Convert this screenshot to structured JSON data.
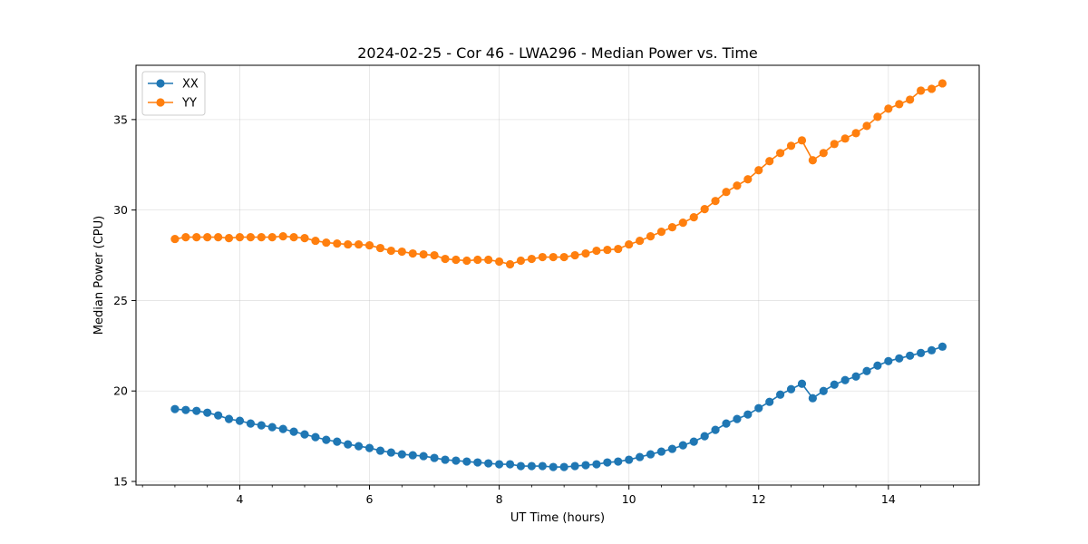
{
  "chart_data": {
    "type": "line",
    "title": "2024-02-25 - Cor 46 - LWA296 - Median Power vs. Time",
    "xlabel": "UT Time (hours)",
    "ylabel": "Median Power (CPU)",
    "xlim": [
      2.4,
      15.4
    ],
    "ylim": [
      14.8,
      38.0
    ],
    "xticks": [
      4,
      6,
      8,
      10,
      12,
      14
    ],
    "xtick_labels": [
      "4",
      "6",
      "8",
      "10",
      "12",
      "14"
    ],
    "yticks": [
      15,
      20,
      25,
      30,
      35
    ],
    "ytick_labels": [
      "15",
      "20",
      "25",
      "30",
      "35"
    ],
    "grid": true,
    "legend_position": "top-left",
    "x": [
      3.0,
      3.167,
      3.333,
      3.5,
      3.667,
      3.833,
      4.0,
      4.167,
      4.333,
      4.5,
      4.667,
      4.833,
      5.0,
      5.167,
      5.333,
      5.5,
      5.667,
      5.833,
      6.0,
      6.167,
      6.333,
      6.5,
      6.667,
      6.833,
      7.0,
      7.167,
      7.333,
      7.5,
      7.667,
      7.833,
      8.0,
      8.167,
      8.333,
      8.5,
      8.667,
      8.833,
      9.0,
      9.167,
      9.333,
      9.5,
      9.667,
      9.833,
      10.0,
      10.167,
      10.333,
      10.5,
      10.667,
      10.833,
      11.0,
      11.167,
      11.333,
      11.5,
      11.667,
      11.833,
      12.0,
      12.167,
      12.333,
      12.5,
      12.667,
      12.833,
      13.0,
      13.167,
      13.333,
      13.5,
      13.667,
      13.833,
      14.0,
      14.167,
      14.333,
      14.5,
      14.667,
      14.833
    ],
    "series": [
      {
        "name": "XX",
        "color": "#1f77b4",
        "values": [
          19.0,
          18.95,
          18.9,
          18.8,
          18.65,
          18.45,
          18.35,
          18.2,
          18.1,
          18.0,
          17.9,
          17.75,
          17.6,
          17.45,
          17.3,
          17.2,
          17.05,
          16.95,
          16.85,
          16.7,
          16.6,
          16.5,
          16.45,
          16.4,
          16.3,
          16.2,
          16.15,
          16.1,
          16.05,
          16.0,
          15.95,
          15.95,
          15.85,
          15.85,
          15.85,
          15.8,
          15.8,
          15.85,
          15.9,
          15.95,
          16.05,
          16.1,
          16.2,
          16.35,
          16.5,
          16.65,
          16.8,
          17.0,
          17.2,
          17.5,
          17.85,
          18.2,
          18.45,
          18.7,
          19.05,
          19.4,
          19.8,
          20.1,
          20.4,
          19.6,
          20.0,
          20.35,
          20.6,
          20.8,
          21.1,
          21.4,
          21.65,
          21.8,
          21.95,
          22.1,
          22.25,
          22.45
        ]
      },
      {
        "name": "YY",
        "color": "#ff7f0e",
        "values": [
          28.4,
          28.5,
          28.5,
          28.5,
          28.5,
          28.45,
          28.5,
          28.5,
          28.5,
          28.5,
          28.55,
          28.5,
          28.45,
          28.3,
          28.2,
          28.15,
          28.1,
          28.1,
          28.05,
          27.9,
          27.75,
          27.7,
          27.6,
          27.55,
          27.5,
          27.3,
          27.25,
          27.2,
          27.25,
          27.25,
          27.15,
          27.0,
          27.2,
          27.3,
          27.4,
          27.4,
          27.4,
          27.5,
          27.6,
          27.75,
          27.8,
          27.85,
          28.1,
          28.3,
          28.55,
          28.8,
          29.05,
          29.3,
          29.6,
          30.05,
          30.5,
          31.0,
          31.35,
          31.7,
          32.2,
          32.7,
          33.15,
          33.55,
          33.85,
          32.75,
          33.15,
          33.65,
          33.95,
          34.25,
          34.65,
          35.15,
          35.6,
          35.85,
          36.1,
          36.6,
          36.7,
          37.0
        ]
      }
    ]
  }
}
